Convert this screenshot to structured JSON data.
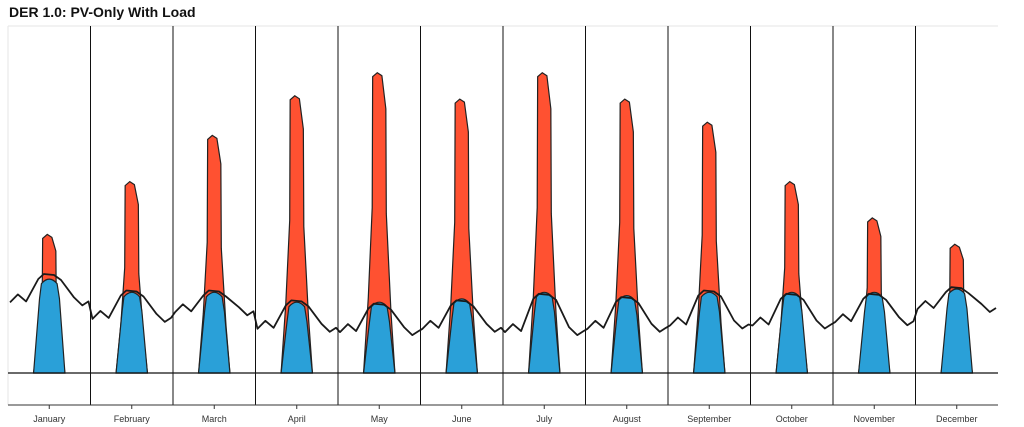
{
  "chart_data": {
    "type": "area",
    "title": "DER 1.0: PV-Only With Load",
    "xlabel": "",
    "ylabel": "",
    "categories": [
      "January",
      "February",
      "March",
      "April",
      "May",
      "June",
      "July",
      "August",
      "September",
      "October",
      "November",
      "December"
    ],
    "series": [
      {
        "key": "pv_excess",
        "peak_values": [
          0.42,
          0.58,
          0.72,
          0.84,
          0.91,
          0.83,
          0.91,
          0.83,
          0.76,
          0.58,
          0.47,
          0.39
        ],
        "values_note": ""
      },
      {
        "key": "pv_self_consumed",
        "peak_values": [
          0.28,
          0.24,
          0.24,
          0.21,
          0.21,
          0.22,
          0.24,
          0.23,
          0.24,
          0.24,
          0.24,
          0.25
        ]
      },
      {
        "key": "load",
        "night_values": [
          0.22,
          0.17,
          0.19,
          0.14,
          0.13,
          0.14,
          0.13,
          0.14,
          0.15,
          0.15,
          0.16,
          0.2
        ],
        "day_values": [
          0.3,
          0.25,
          0.25,
          0.22,
          0.21,
          0.22,
          0.24,
          0.23,
          0.25,
          0.24,
          0.24,
          0.26
        ]
      }
    ],
    "ylim": [
      0,
      1
    ],
    "grid": false,
    "legend": "none",
    "colors": {
      "pv_excess": "#ff5131",
      "pv_self_consumed": "#2aa0d8",
      "load": "#1a1a1a",
      "divider": "#111111",
      "axis": "#333333"
    }
  }
}
